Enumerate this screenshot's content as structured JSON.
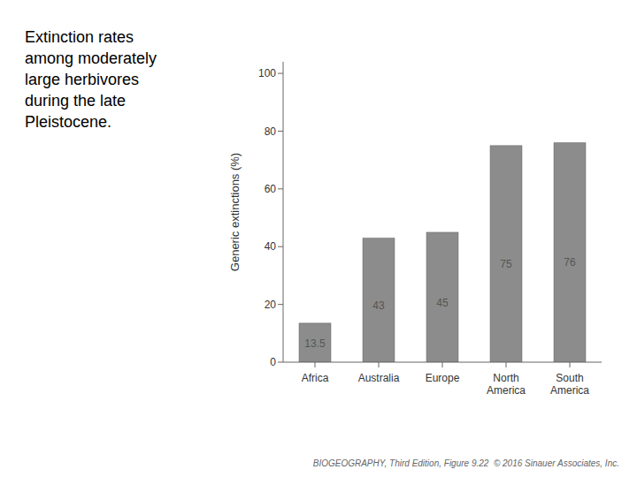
{
  "chart_data": {
    "type": "bar",
    "title": "Extinction rates\namong moderately\nlarge herbivores\nduring the late\nPleistocene.",
    "categories": [
      "Africa",
      "Australia",
      "Europe",
      "North\nAmerica",
      "South\nAmerica"
    ],
    "values": [
      13.5,
      43,
      45,
      75,
      76
    ],
    "color": "#8c8c8c",
    "ylabel": "Generic extinctions (%)",
    "ylim": [
      0,
      104
    ],
    "yticks": [
      0,
      20,
      40,
      60,
      80,
      100
    ],
    "data_labels": true,
    "grid": false,
    "annotations": [
      "BIOGEOGRAPHY, Third Edition, Figure 9.22  © 2016 Sinauer Associates, Inc."
    ]
  }
}
